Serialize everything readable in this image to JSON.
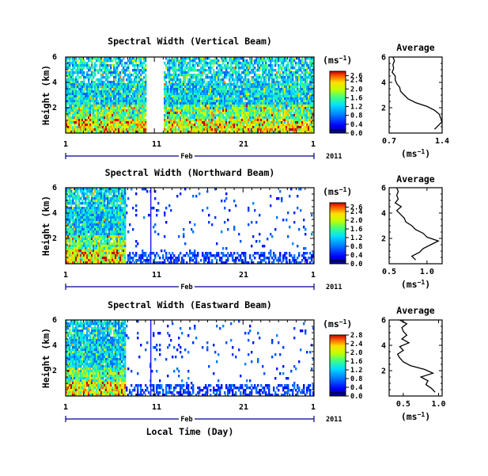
{
  "figure": {
    "xlabel": "Local Time (Day)",
    "month": "Feb",
    "year": "2011",
    "x_ticks": [
      "1",
      "11",
      "21",
      "1"
    ],
    "ylabel": "Height (km)",
    "y_ticks": [
      "6",
      "4",
      "2"
    ],
    "unit_label": "(ms",
    "unit_exp": "−1",
    "avg_title": "Average"
  },
  "chart_data": [
    {
      "type": "heatmap",
      "title": "Spectral Width (Vertical Beam)",
      "xlabel": "Local Time (Day)",
      "ylabel": "Height (km)",
      "x_range_days": [
        1,
        29
      ],
      "ylim": [
        0,
        6
      ],
      "colorbar_ticks": [
        "2.6",
        "2.4",
        "2.0",
        "1.6",
        "1.2",
        "0.8",
        "0.4",
        "0.0"
      ],
      "colorbar_range": [
        0.0,
        2.8
      ],
      "data_coverage": "near continuous, gap around day 10-11",
      "average_profile": {
        "title": "Average",
        "xlim": [
          0.7,
          1.4
        ],
        "xticks": [
          "0.7",
          "1.4"
        ],
        "ylim": [
          0,
          6
        ],
        "height": [
          0.3,
          0.6,
          0.9,
          1.2,
          1.5,
          1.8,
          2.1,
          2.4,
          2.7,
          3.0,
          3.3,
          3.6,
          3.9,
          4.2,
          4.5,
          4.8,
          5.1,
          5.4,
          5.7,
          6.0
        ],
        "value": [
          1.3,
          1.35,
          1.4,
          1.38,
          1.36,
          1.3,
          1.2,
          1.05,
          0.95,
          0.9,
          0.85,
          0.84,
          0.8,
          0.78,
          0.78,
          0.74,
          0.76,
          0.75,
          0.77,
          0.75
        ]
      }
    },
    {
      "type": "heatmap",
      "title": "Spectral Width (Northward Beam)",
      "xlabel": "Local Time (Day)",
      "ylabel": "Height (km)",
      "x_range_days": [
        1,
        29
      ],
      "ylim": [
        0,
        6
      ],
      "colorbar_ticks": [
        "2.6",
        "2.4",
        "2.0",
        "1.6",
        "1.2",
        "0.8",
        "0.4",
        "0.0"
      ],
      "colorbar_range": [
        0.0,
        2.8
      ],
      "data_coverage": "dense days 1-7, sparse afterwards",
      "average_profile": {
        "title": "Average",
        "xlim": [
          0.5,
          1.2
        ],
        "xticks": [
          "0.5",
          "1.0"
        ],
        "ylim": [
          0,
          6
        ],
        "height": [
          0.3,
          0.6,
          0.9,
          1.2,
          1.5,
          1.8,
          2.1,
          2.4,
          2.7,
          3.0,
          3.3,
          3.6,
          3.9,
          4.2,
          4.5,
          4.8,
          5.1,
          5.4,
          5.7,
          6.0
        ],
        "value": [
          0.85,
          0.8,
          0.9,
          0.95,
          1.05,
          1.15,
          1.0,
          0.95,
          0.85,
          0.8,
          0.72,
          0.7,
          0.65,
          0.6,
          0.66,
          0.58,
          0.62,
          0.6,
          0.62,
          0.6
        ]
      }
    },
    {
      "type": "heatmap",
      "title": "Spectral Width (Eastward Beam)",
      "xlabel": "Local Time (Day)",
      "ylabel": "Height (km)",
      "x_range_days": [
        1,
        29
      ],
      "ylim": [
        0,
        6
      ],
      "colorbar_ticks": [
        "2.8",
        "2.4",
        "2.0",
        "1.6",
        "1.2",
        "0.8",
        "0.4",
        "0.0"
      ],
      "colorbar_range": [
        0.0,
        2.8
      ],
      "data_coverage": "dense days 1-7, sparse afterwards",
      "average_profile": {
        "title": "Average",
        "xlim": [
          0.3,
          1.05
        ],
        "xticks": [
          "0.5",
          "1.0"
        ],
        "ylim": [
          0,
          6
        ],
        "height": [
          0.3,
          0.6,
          0.9,
          1.2,
          1.5,
          1.8,
          2.1,
          2.4,
          2.7,
          3.0,
          3.3,
          3.6,
          3.9,
          4.2,
          4.5,
          4.8,
          5.1,
          5.4,
          5.7,
          6.0
        ],
        "value": [
          0.95,
          0.9,
          0.82,
          0.85,
          0.75,
          0.92,
          0.8,
          0.6,
          0.5,
          0.45,
          0.42,
          0.5,
          0.45,
          0.58,
          0.48,
          0.55,
          0.5,
          0.48,
          0.55,
          0.45
        ]
      }
    }
  ]
}
